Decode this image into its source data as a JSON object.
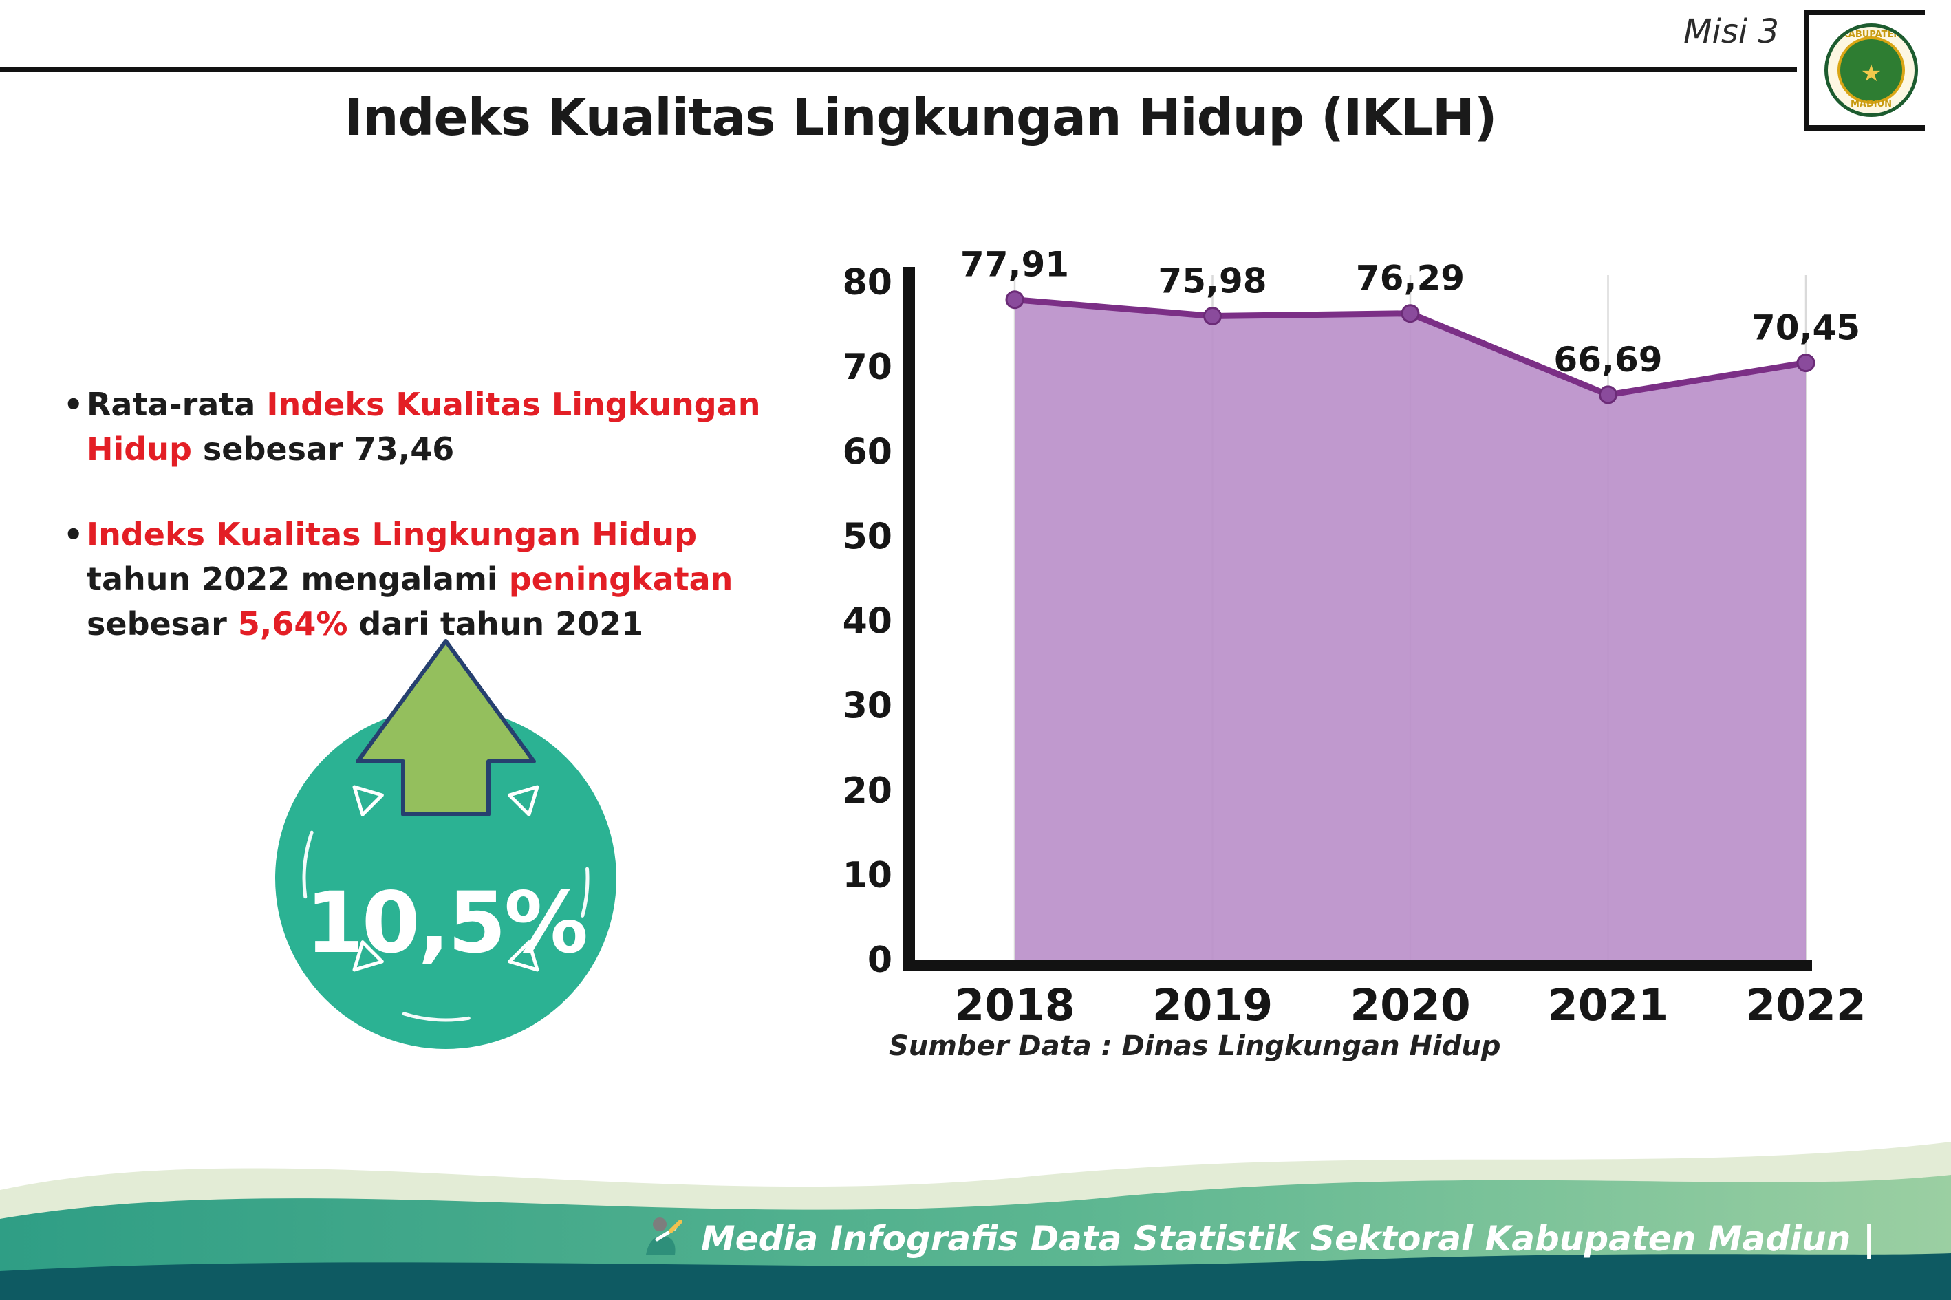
{
  "header": {
    "misi_label": "Misi 3",
    "title": "Indeks Kualitas Lingkungan Hidup (IKLH)",
    "logo": {
      "top_text": "KABUPATEN",
      "bottom_text": "MADIUN"
    }
  },
  "bullets": [
    {
      "segments": [
        {
          "text": "Rata-rata ",
          "red": false
        },
        {
          "text": "Indeks Kualitas Lingkungan Hidup",
          "red": true
        },
        {
          "text": " sebesar 73,46",
          "red": false
        }
      ]
    },
    {
      "segments": [
        {
          "text": "Indeks Kualitas Lingkungan Hidup",
          "red": true
        },
        {
          "text": " tahun 2022 mengalami ",
          "red": false
        },
        {
          "text": "peningkatan",
          "red": true
        },
        {
          "text": " sebesar ",
          "red": false
        },
        {
          "text": "5,64%",
          "red": true
        },
        {
          "text": " dari tahun 2021",
          "red": false
        }
      ]
    }
  ],
  "badge": {
    "value": "10,5%"
  },
  "chart_data": {
    "type": "area",
    "categories": [
      "2018",
      "2019",
      "2020",
      "2021",
      "2022"
    ],
    "values": [
      77.91,
      75.98,
      76.29,
      66.69,
      70.45
    ],
    "value_labels": [
      "77,91",
      "75,98",
      "76,29",
      "66,69",
      "70,45"
    ],
    "title": "",
    "xlabel": "",
    "ylabel": "",
    "ylim": [
      0,
      80
    ],
    "yticks": [
      0,
      10,
      20,
      30,
      40,
      50,
      60,
      70,
      80
    ],
    "grid": "vertical",
    "legend": "none",
    "colors": {
      "area": "#bb90ca",
      "line": "#7b2f86",
      "point": "#8a4b9c"
    }
  },
  "source_note": "Sumber Data : Dinas Lingkungan Hidup",
  "footer": {
    "credit": "Media Infografis Data Statistik Sektoral Kabupaten Madiun |"
  },
  "colors": {
    "accent_red": "#e31e25",
    "badge_teal": "#2bb293",
    "arrow_green": "#94bf5d"
  }
}
